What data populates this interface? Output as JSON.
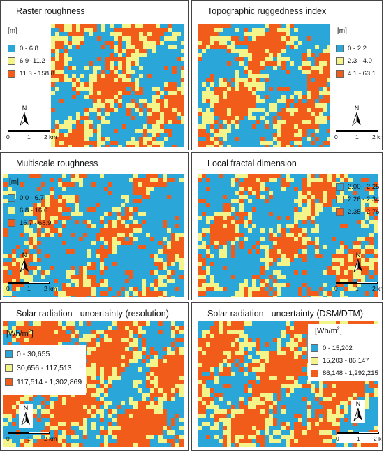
{
  "colors": {
    "low": "#2aa7d8",
    "mid": "#f3f58a",
    "high": "#f25c1a"
  },
  "north_label": "N",
  "scale_labels": [
    "0",
    "1",
    "2 km"
  ],
  "panels": [
    {
      "title": "Raster roughness",
      "unit": "[m]",
      "legend": [
        "0 - 6.8",
        "6.9- 11.2",
        "11.3 - 158.8"
      ]
    },
    {
      "title": "Topographic ruggedness index",
      "unit": "[m]",
      "legend": [
        "0 - 2.2",
        "2.3 - 4.0",
        "4.1 - 63.1"
      ]
    },
    {
      "title": "Multiscale roughness",
      "unit": "[m]",
      "legend": [
        "0.0 - 6.7",
        "6.8 - 16.6",
        "16.7 - 68.9"
      ]
    },
    {
      "title": "Local fractal dimension",
      "unit": "",
      "legend": [
        "2.00 - 2.25",
        "2.26 - 2.34",
        "2.35 - 2.76"
      ]
    },
    {
      "title": "Solar radiation - uncertainty (resolution)",
      "unit": "[Wh/m",
      "unit_sup": "2",
      "unit_end": "]",
      "legend": [
        "0 - 30,655",
        "30,656 - 117,513",
        "117,514 - 1,302,869"
      ]
    },
    {
      "title": "Solar radiation - uncertainty (DSM/DTM)",
      "unit": "[Wh/m",
      "unit_sup": "2",
      "unit_end": "]",
      "legend": [
        "0 - 15,202",
        "15,203 - 86,147",
        "86,148 - 1,292,215"
      ]
    }
  ]
}
